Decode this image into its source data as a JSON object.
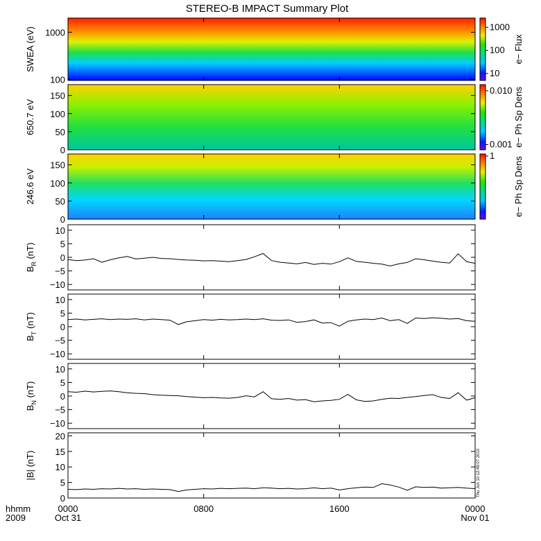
{
  "title": "STEREO-B IMPACT Summary Plot",
  "timestamp": "Thu Jun 10 12:49:07 2010",
  "x_axis": {
    "row_label": "hhmm",
    "row_label2": "2009",
    "ticks": [
      "0000",
      "0800",
      "1600",
      "0000"
    ],
    "dates": [
      "Oct 31",
      "Nov 01"
    ],
    "range_hours": [
      0,
      24
    ]
  },
  "chart_data": [
    {
      "type": "heatmap",
      "ylabel": "SWEA (eV)",
      "yscale": "log",
      "ylim": [
        95,
        2000
      ],
      "yticks": [
        "100",
        "1000"
      ],
      "colorbar_label": "e− Flux",
      "colorbar_ticks": [
        "1000",
        "100",
        "10"
      ],
      "colorbar_scale": "log",
      "colorbar_range": [
        5,
        2500
      ]
    },
    {
      "type": "heatmap",
      "ylabel": "650.7 eV",
      "ylim": [
        0,
        180
      ],
      "yticks": [
        "0",
        "50",
        "100",
        "150"
      ],
      "colorbar_label": "e− Ph Sp Dens",
      "colorbar_ticks": [
        "0.010",
        "0.001"
      ],
      "colorbar_scale": "log",
      "colorbar_range": [
        0.0008,
        0.013
      ]
    },
    {
      "type": "heatmap",
      "ylabel": "246.6 eV",
      "ylim": [
        0,
        180
      ],
      "yticks": [
        "0",
        "50",
        "100",
        "150"
      ],
      "colorbar_label": "e− Ph Sp Dens",
      "colorbar_ticks": [
        "1"
      ],
      "colorbar_scale": "log",
      "colorbar_range": [
        0.05,
        1.1
      ]
    },
    {
      "type": "line",
      "ylabel_main": "B",
      "ylabel_sub": "R",
      "ylabel_unit": " (nT)",
      "ylim": [
        -12,
        12
      ],
      "yticks": [
        "10",
        "5",
        "0",
        "−5",
        "−10"
      ],
      "x": [
        0,
        0.5,
        1,
        1.5,
        2,
        2.5,
        3,
        3.5,
        4,
        4.5,
        5,
        5.5,
        6,
        6.5,
        7,
        7.5,
        8,
        8.5,
        9,
        9.5,
        10,
        10.5,
        11,
        11.5,
        12,
        12.5,
        13,
        13.5,
        14,
        14.5,
        15,
        15.5,
        16,
        16.5,
        17,
        17.5,
        18,
        18.5,
        19,
        19.5,
        20,
        20.5,
        21,
        21.5,
        22,
        22.5,
        23,
        23.5,
        24
      ],
      "values": [
        -0.8,
        -1.2,
        -1,
        -0.5,
        -1.8,
        -0.9,
        -0.2,
        0.3,
        -0.6,
        -0.3,
        0,
        -0.4,
        -0.5,
        -0.8,
        -1,
        -1.1,
        -1.3,
        -1.2,
        -1.4,
        -1.6,
        -1.2,
        -0.8,
        0.2,
        1.4,
        -1.2,
        -1.8,
        -2.1,
        -2.4,
        -1.9,
        -2.6,
        -2.2,
        -2.5,
        -1.6,
        -0.2,
        -1.5,
        -1.8,
        -2.2,
        -2.5,
        -3.2,
        -2.4,
        -1.9,
        -0.5,
        -0.9,
        -1.4,
        -1.8,
        -2.1,
        1.3,
        -1.6,
        -2.2
      ]
    },
    {
      "type": "line",
      "ylabel_main": "B",
      "ylabel_sub": "T",
      "ylabel_unit": " (nT)",
      "ylim": [
        -12,
        12
      ],
      "yticks": [
        "10",
        "5",
        "0",
        "−5",
        "−10"
      ],
      "x": [
        0,
        0.5,
        1,
        1.5,
        2,
        2.5,
        3,
        3.5,
        4,
        4.5,
        5,
        5.5,
        6,
        6.5,
        7,
        7.5,
        8,
        8.5,
        9,
        9.5,
        10,
        10.5,
        11,
        11.5,
        12,
        12.5,
        13,
        13.5,
        14,
        14.5,
        15,
        15.5,
        16,
        16.5,
        17,
        17.5,
        18,
        18.5,
        19,
        19.5,
        20,
        20.5,
        21,
        21.5,
        22,
        22.5,
        23,
        23.5,
        24
      ],
      "values": [
        2.6,
        2.8,
        2.5,
        2.7,
        2.9,
        2.6,
        2.8,
        2.7,
        2.9,
        2.5,
        2.8,
        2.6,
        2.4,
        0.8,
        1.8,
        2.2,
        2.6,
        2.4,
        2.7,
        2.5,
        2.6,
        2.8,
        2.6,
        2.9,
        2.4,
        2.3,
        2.5,
        1.6,
        1.9,
        2.5,
        1.3,
        1.5,
        0.2,
        2.0,
        2.5,
        2.8,
        2.6,
        3.2,
        2.2,
        2.6,
        1.2,
        3.2,
        3.0,
        3.3,
        3.1,
        2.8,
        3.0,
        2.2,
        2.0
      ]
    },
    {
      "type": "line",
      "ylabel_main": "B",
      "ylabel_sub": "N",
      "ylabel_unit": " (nT)",
      "ylim": [
        -12,
        12
      ],
      "yticks": [
        "10",
        "5",
        "0",
        "−5",
        "−10"
      ],
      "x": [
        0,
        0.5,
        1,
        1.5,
        2,
        2.5,
        3,
        3.5,
        4,
        4.5,
        5,
        5.5,
        6,
        6.5,
        7,
        7.5,
        8,
        8.5,
        9,
        9.5,
        10,
        10.5,
        11,
        11.5,
        12,
        12.5,
        13,
        13.5,
        14,
        14.5,
        15,
        15.5,
        16,
        16.5,
        17,
        17.5,
        18,
        18.5,
        19,
        19.5,
        20,
        20.5,
        21,
        21.5,
        22,
        22.5,
        23,
        23.5,
        24
      ],
      "values": [
        1.6,
        1.4,
        1.8,
        1.5,
        1.7,
        1.9,
        1.6,
        1.2,
        1.0,
        0.9,
        0.5,
        0.3,
        0.2,
        0.1,
        -0.2,
        -0.4,
        -0.6,
        -0.5,
        -0.7,
        -0.8,
        -0.5,
        0.1,
        -0.3,
        1.6,
        -1.0,
        -1.2,
        -0.9,
        -1.5,
        -1.3,
        -2.1,
        -1.8,
        -1.6,
        -1.2,
        0.6,
        -1.4,
        -2.0,
        -1.8,
        -1.2,
        -0.8,
        -0.9,
        -0.5,
        -0.2,
        0.2,
        0.5,
        -0.5,
        -0.9,
        1.2,
        -1.5,
        -0.6
      ]
    },
    {
      "type": "line",
      "ylabel": "|B| (nT)",
      "ylim": [
        0,
        21
      ],
      "yticks": [
        "20",
        "15",
        "10",
        "5",
        "0"
      ],
      "x": [
        0,
        0.5,
        1,
        1.5,
        2,
        2.5,
        3,
        3.5,
        4,
        4.5,
        5,
        5.5,
        6,
        6.5,
        7,
        7.5,
        8,
        8.5,
        9,
        9.5,
        10,
        10.5,
        11,
        11.5,
        12,
        12.5,
        13,
        13.5,
        14,
        14.5,
        15,
        15.5,
        16,
        16.5,
        17,
        17.5,
        18,
        18.5,
        19,
        19.5,
        20,
        20.5,
        21,
        21.5,
        22,
        22.5,
        23,
        23.5,
        24
      ],
      "values": [
        2.8,
        2.7,
        2.9,
        2.8,
        3.0,
        2.9,
        3.1,
        2.9,
        3.0,
        2.8,
        2.9,
        2.8,
        2.7,
        2.1,
        2.6,
        2.8,
        3.0,
        2.9,
        3.1,
        3.0,
        3.1,
        3.2,
        3.0,
        3.3,
        3.2,
        3.0,
        3.1,
        2.9,
        3.0,
        3.3,
        3.0,
        3.2,
        2.6,
        3.0,
        3.3,
        3.5,
        3.4,
        4.6,
        4.2,
        3.5,
        2.5,
        3.6,
        3.4,
        3.5,
        3.2,
        3.3,
        3.4,
        3.2,
        3.0
      ]
    }
  ]
}
